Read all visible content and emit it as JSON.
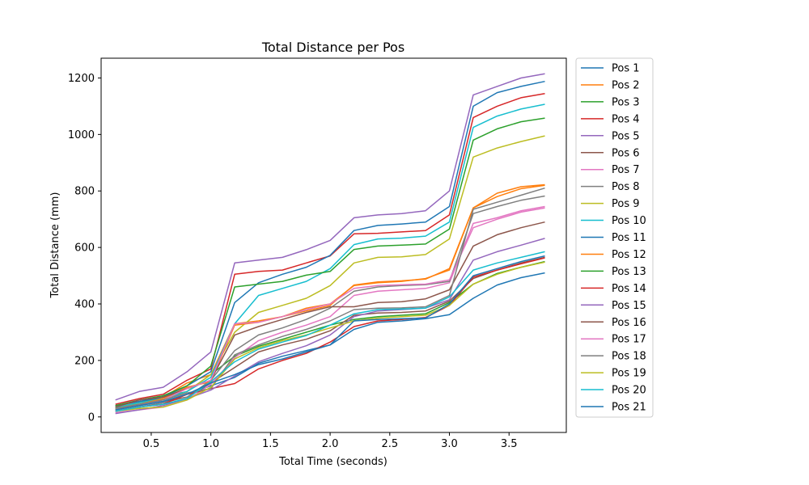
{
  "chart_data": {
    "type": "line",
    "title": "Total Distance per Pos",
    "xlabel": "Total Time (seconds)",
    "ylabel": "Total Distance (mm)",
    "xlim": [
      0.08,
      3.98
    ],
    "ylim": [
      -55,
      1270
    ],
    "xticks": [
      0.5,
      1.0,
      1.5,
      2.0,
      2.5,
      3.0,
      3.5
    ],
    "yticks": [
      0,
      200,
      400,
      600,
      800,
      1000,
      1200
    ],
    "grid": false,
    "legend_position": "outside-right",
    "x": [
      0.2,
      0.4,
      0.6,
      0.8,
      1.0,
      1.2,
      1.4,
      1.6,
      1.8,
      2.0,
      2.2,
      2.4,
      2.6,
      2.8,
      3.0,
      3.2,
      3.4,
      3.6,
      3.8
    ],
    "series": [
      {
        "name": "Pos 1",
        "color": "#1f77b4",
        "values": [
          25,
          40,
          55,
          80,
          110,
          140,
          190,
          215,
          235,
          255,
          310,
          335,
          340,
          348,
          362,
          420,
          467,
          493,
          510
        ]
      },
      {
        "name": "Pos 2",
        "color": "#ff7f0e",
        "values": [
          40,
          55,
          70,
          120,
          150,
          330,
          340,
          355,
          375,
          395,
          467,
          478,
          482,
          488,
          525,
          740,
          792,
          815,
          822
        ]
      },
      {
        "name": "Pos 3",
        "color": "#2ca02c",
        "values": [
          35,
          50,
          70,
          90,
          150,
          215,
          250,
          275,
          300,
          325,
          345,
          355,
          360,
          365,
          405,
          470,
          508,
          530,
          550
        ]
      },
      {
        "name": "Pos 4",
        "color": "#d62728",
        "values": [
          45,
          65,
          80,
          130,
          170,
          505,
          515,
          520,
          545,
          570,
          648,
          650,
          655,
          660,
          715,
          1060,
          1100,
          1130,
          1145
        ]
      },
      {
        "name": "Pos 5",
        "color": "#9467bd",
        "values": [
          60,
          90,
          105,
          160,
          230,
          545,
          555,
          565,
          592,
          625,
          705,
          715,
          720,
          730,
          800,
          1140,
          1170,
          1200,
          1215
        ]
      },
      {
        "name": "Pos 6",
        "color": "#8c564b",
        "values": [
          30,
          45,
          55,
          70,
          120,
          175,
          230,
          255,
          275,
          305,
          360,
          368,
          370,
          375,
          410,
          490,
          520,
          545,
          565
        ]
      },
      {
        "name": "Pos 7",
        "color": "#e377c2",
        "values": [
          15,
          25,
          35,
          60,
          115,
          210,
          270,
          300,
          325,
          355,
          430,
          445,
          450,
          455,
          475,
          685,
          705,
          730,
          745
        ]
      },
      {
        "name": "Pos 8",
        "color": "#7f7f7f",
        "values": [
          20,
          35,
          50,
          70,
          130,
          235,
          290,
          315,
          345,
          385,
          445,
          460,
          465,
          468,
          480,
          720,
          745,
          767,
          782
        ]
      },
      {
        "name": "Pos 9",
        "color": "#bcbd22",
        "values": [
          30,
          50,
          60,
          90,
          150,
          300,
          370,
          395,
          420,
          465,
          545,
          565,
          567,
          575,
          630,
          920,
          952,
          975,
          995
        ]
      },
      {
        "name": "Pos 10",
        "color": "#17becf",
        "values": [
          35,
          50,
          65,
          90,
          140,
          330,
          430,
          455,
          480,
          525,
          610,
          630,
          633,
          640,
          690,
          1025,
          1065,
          1090,
          1107
        ]
      },
      {
        "name": "Pos 11",
        "color": "#1f77b4",
        "values": [
          40,
          55,
          70,
          110,
          160,
          405,
          475,
          505,
          530,
          572,
          660,
          678,
          683,
          690,
          745,
          1100,
          1148,
          1170,
          1188
        ]
      },
      {
        "name": "Pos 12",
        "color": "#ff7f0e",
        "values": [
          25,
          45,
          65,
          105,
          125,
          325,
          335,
          355,
          385,
          400,
          465,
          475,
          480,
          490,
          520,
          740,
          780,
          808,
          820
        ]
      },
      {
        "name": "Pos 13",
        "color": "#2ca02c",
        "values": [
          40,
          60,
          75,
          110,
          180,
          460,
          470,
          480,
          502,
          515,
          593,
          605,
          608,
          612,
          665,
          980,
          1020,
          1045,
          1058
        ]
      },
      {
        "name": "Pos 14",
        "color": "#d62728",
        "values": [
          20,
          35,
          45,
          80,
          100,
          118,
          170,
          200,
          225,
          265,
          320,
          340,
          345,
          352,
          395,
          495,
          520,
          542,
          563
        ]
      },
      {
        "name": "Pos 15",
        "color": "#9467bd",
        "values": [
          12,
          25,
          40,
          65,
          95,
          145,
          195,
          225,
          252,
          290,
          355,
          375,
          380,
          385,
          415,
          555,
          585,
          608,
          632
        ]
      },
      {
        "name": "Pos 16",
        "color": "#8c564b",
        "values": [
          35,
          60,
          70,
          100,
          130,
          290,
          320,
          345,
          370,
          390,
          390,
          405,
          408,
          418,
          450,
          605,
          645,
          670,
          690
        ]
      },
      {
        "name": "Pos 17",
        "color": "#e377c2",
        "values": [
          25,
          40,
          60,
          100,
          130,
          330,
          335,
          355,
          380,
          400,
          455,
          465,
          468,
          470,
          485,
          670,
          700,
          725,
          740
        ]
      },
      {
        "name": "Pos 18",
        "color": "#7f7f7f",
        "values": [
          30,
          45,
          60,
          85,
          100,
          220,
          255,
          285,
          310,
          340,
          380,
          385,
          386,
          390,
          430,
          735,
          760,
          785,
          810
        ]
      },
      {
        "name": "Pos 19",
        "color": "#bcbd22",
        "values": [
          20,
          30,
          35,
          60,
          105,
          205,
          245,
          270,
          290,
          315,
          340,
          350,
          355,
          360,
          395,
          470,
          505,
          530,
          548
        ]
      },
      {
        "name": "Pos 20",
        "color": "#17becf",
        "values": [
          20,
          35,
          45,
          65,
          125,
          195,
          240,
          265,
          288,
          325,
          365,
          380,
          382,
          385,
          425,
          520,
          545,
          565,
          585
        ]
      },
      {
        "name": "Pos 21",
        "color": "#1f77b4",
        "values": [
          25,
          40,
          55,
          80,
          120,
          150,
          185,
          205,
          230,
          255,
          340,
          345,
          348,
          350,
          400,
          500,
          525,
          550,
          570
        ]
      }
    ]
  }
}
